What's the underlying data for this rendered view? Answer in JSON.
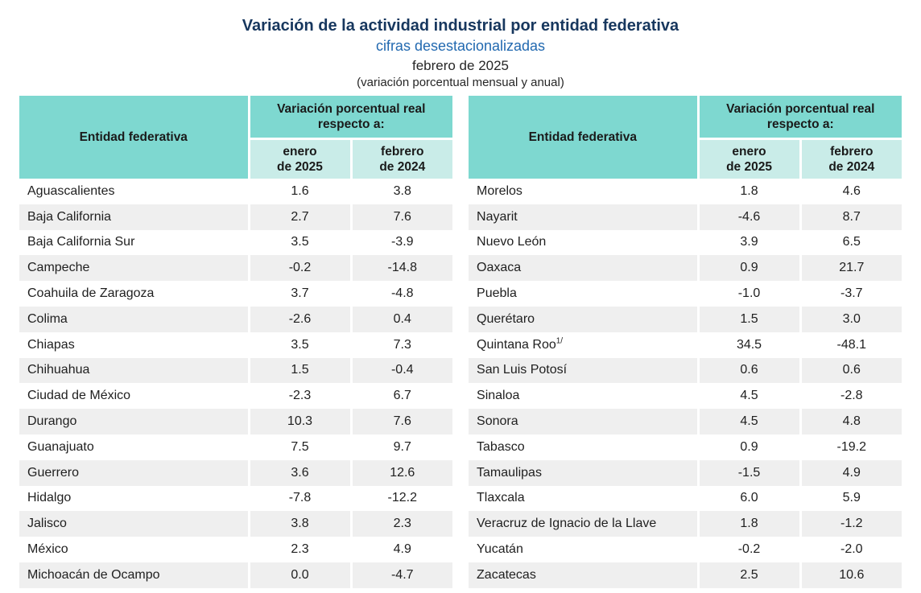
{
  "header": {
    "title": "Variación de la actividad industrial por entidad federativa",
    "subtitle": "cifras desestacionalizadas",
    "period": "febrero de 2025",
    "note": "(variación porcentual mensual y anual)"
  },
  "colors": {
    "title_navy": "#17375E",
    "subtitle_blue": "#2269B0",
    "header_teal": "#7ED8D0",
    "subheader_teal": "#C9ECE8",
    "row_stripe": "#EFEFEF"
  },
  "table_headers": {
    "entity": "Entidad federativa",
    "group": "Variación porcentual real\nrespecto a:",
    "col_month": "enero\nde 2025",
    "col_year": "febrero\nde 2024"
  },
  "tables": [
    {
      "rows": [
        {
          "entity": "Aguascalientes",
          "m": "1.6",
          "y": "3.8"
        },
        {
          "entity": "Baja California",
          "m": "2.7",
          "y": "7.6"
        },
        {
          "entity": "Baja California Sur",
          "m": "3.5",
          "y": "-3.9"
        },
        {
          "entity": "Campeche",
          "m": "-0.2",
          "y": "-14.8"
        },
        {
          "entity": "Coahuila de Zaragoza",
          "m": "3.7",
          "y": "-4.8"
        },
        {
          "entity": "Colima",
          "m": "-2.6",
          "y": "0.4"
        },
        {
          "entity": "Chiapas",
          "m": "3.5",
          "y": "7.3"
        },
        {
          "entity": "Chihuahua",
          "m": "1.5",
          "y": "-0.4"
        },
        {
          "entity": "Ciudad de México",
          "m": "-2.3",
          "y": "6.7"
        },
        {
          "entity": "Durango",
          "m": "10.3",
          "y": "7.6"
        },
        {
          "entity": "Guanajuato",
          "m": "7.5",
          "y": "9.7"
        },
        {
          "entity": "Guerrero",
          "m": "3.6",
          "y": "12.6"
        },
        {
          "entity": "Hidalgo",
          "m": "-7.8",
          "y": "-12.2"
        },
        {
          "entity": "Jalisco",
          "m": "3.8",
          "y": "2.3"
        },
        {
          "entity": "México",
          "m": "2.3",
          "y": "4.9"
        },
        {
          "entity": "Michoacán de Ocampo",
          "m": "0.0",
          "y": "-4.7"
        }
      ]
    },
    {
      "rows": [
        {
          "entity": "Morelos",
          "m": "1.8",
          "y": "4.6"
        },
        {
          "entity": "Nayarit",
          "m": "-4.6",
          "y": "8.7"
        },
        {
          "entity": "Nuevo León",
          "m": "3.9",
          "y": "6.5"
        },
        {
          "entity": "Oaxaca",
          "m": "0.9",
          "y": "21.7"
        },
        {
          "entity": "Puebla",
          "m": "-1.0",
          "y": "-3.7"
        },
        {
          "entity": "Querétaro",
          "m": "1.5",
          "y": "3.0"
        },
        {
          "entity": "Quintana Roo",
          "sup": "1/",
          "m": "34.5",
          "y": "-48.1"
        },
        {
          "entity": "San Luis Potosí",
          "m": "0.6",
          "y": "0.6"
        },
        {
          "entity": "Sinaloa",
          "m": "4.5",
          "y": "-2.8"
        },
        {
          "entity": "Sonora",
          "m": "4.5",
          "y": "4.8"
        },
        {
          "entity": "Tabasco",
          "m": "0.9",
          "y": "-19.2"
        },
        {
          "entity": "Tamaulipas",
          "m": "-1.5",
          "y": "4.9"
        },
        {
          "entity": "Tlaxcala",
          "m": "6.0",
          "y": "5.9"
        },
        {
          "entity": "Veracruz de Ignacio de la Llave",
          "m": "1.8",
          "y": "-1.2"
        },
        {
          "entity": "Yucatán",
          "m": "-0.2",
          "y": "-2.0"
        },
        {
          "entity": "Zacatecas",
          "m": "2.5",
          "y": "10.6"
        }
      ]
    }
  ]
}
